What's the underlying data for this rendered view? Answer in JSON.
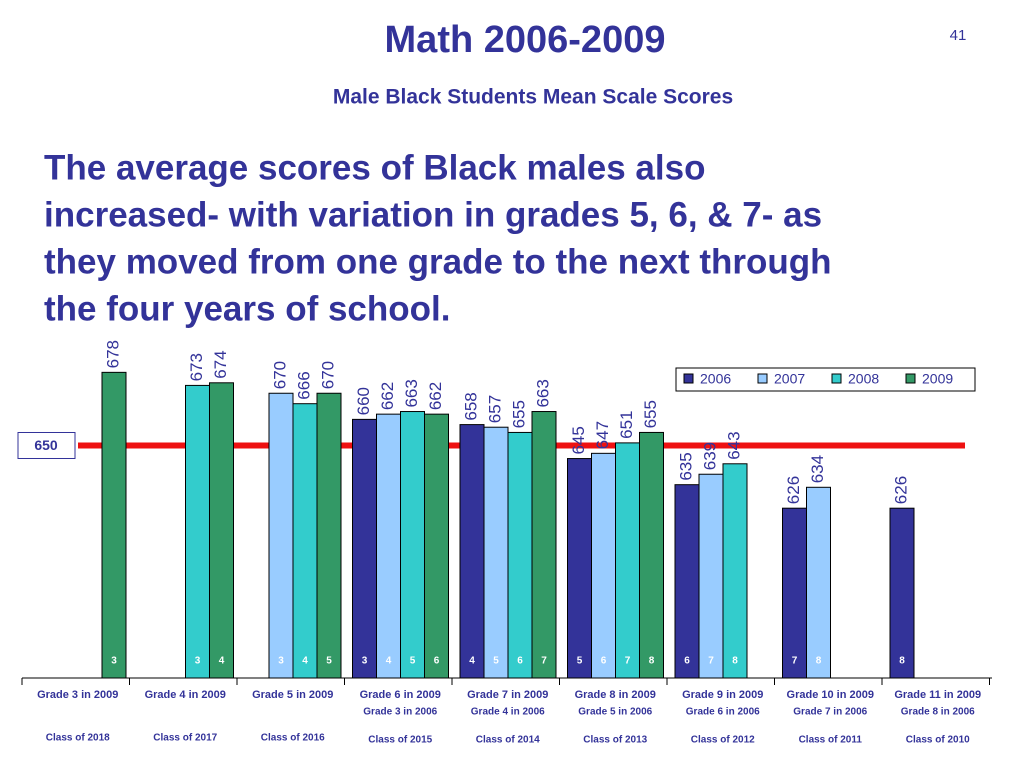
{
  "slide": {
    "title": "Math 2006-2009",
    "subtitle": "Male Black Students Mean Scale Scores",
    "page_number": "41",
    "body_lines": [
      "The average scores of Black males also",
      "increased- with variation in grades 5, 6, & 7- as",
      "they moved from one grade to the next through",
      "the four years of school."
    ]
  },
  "chart_data": {
    "type": "bar",
    "categories": [
      "Grade 3 in 2009",
      "Grade 4 in 2009",
      "Grade 5 in 2009",
      "Grade 6 in 2009",
      "Grade 7 in 2009",
      "Grade 8 in 2009",
      "Grade 9 in 2009",
      "Grade 10 in 2009",
      "Grade 11 in 2009"
    ],
    "subcategories": [
      null,
      null,
      null,
      "Grade 3 in 2006",
      "Grade 4 in 2006",
      "Grade 5 in 2006",
      "Grade 6 in 2006",
      "Grade 7 in 2006",
      "Grade 8 in 2006"
    ],
    "classes": [
      "Class of 2018",
      "Class of 2017",
      "Class of 2016",
      "Class of 2015",
      "Class of 2014",
      "Class of 2013",
      "Class of 2012",
      "Class of 2011",
      "Class of 2010"
    ],
    "series": [
      {
        "name": "2006",
        "color": "#333399",
        "values": [
          null,
          null,
          null,
          660,
          658,
          645,
          635,
          626,
          626
        ],
        "grade_labels": [
          null,
          null,
          null,
          3,
          4,
          5,
          6,
          7,
          8
        ]
      },
      {
        "name": "2007",
        "color": "#99ccff",
        "values": [
          null,
          null,
          670,
          662,
          657,
          647,
          639,
          634,
          null
        ],
        "grade_labels": [
          null,
          null,
          3,
          4,
          5,
          6,
          7,
          8,
          null
        ]
      },
      {
        "name": "2008",
        "color": "#33cccc",
        "values": [
          null,
          673,
          666,
          663,
          655,
          651,
          643,
          null,
          null
        ],
        "grade_labels": [
          null,
          3,
          4,
          5,
          6,
          7,
          8,
          null,
          null
        ]
      },
      {
        "name": "2009",
        "color": "#339966",
        "values": [
          678,
          674,
          670,
          662,
          663,
          655,
          null,
          null,
          null
        ],
        "grade_labels": [
          3,
          4,
          5,
          6,
          7,
          8,
          null,
          null,
          null
        ]
      }
    ],
    "ylim": [
      561,
      690
    ],
    "reference_line": {
      "value": 650,
      "color": "#ee1111"
    },
    "legend": "top-right"
  }
}
